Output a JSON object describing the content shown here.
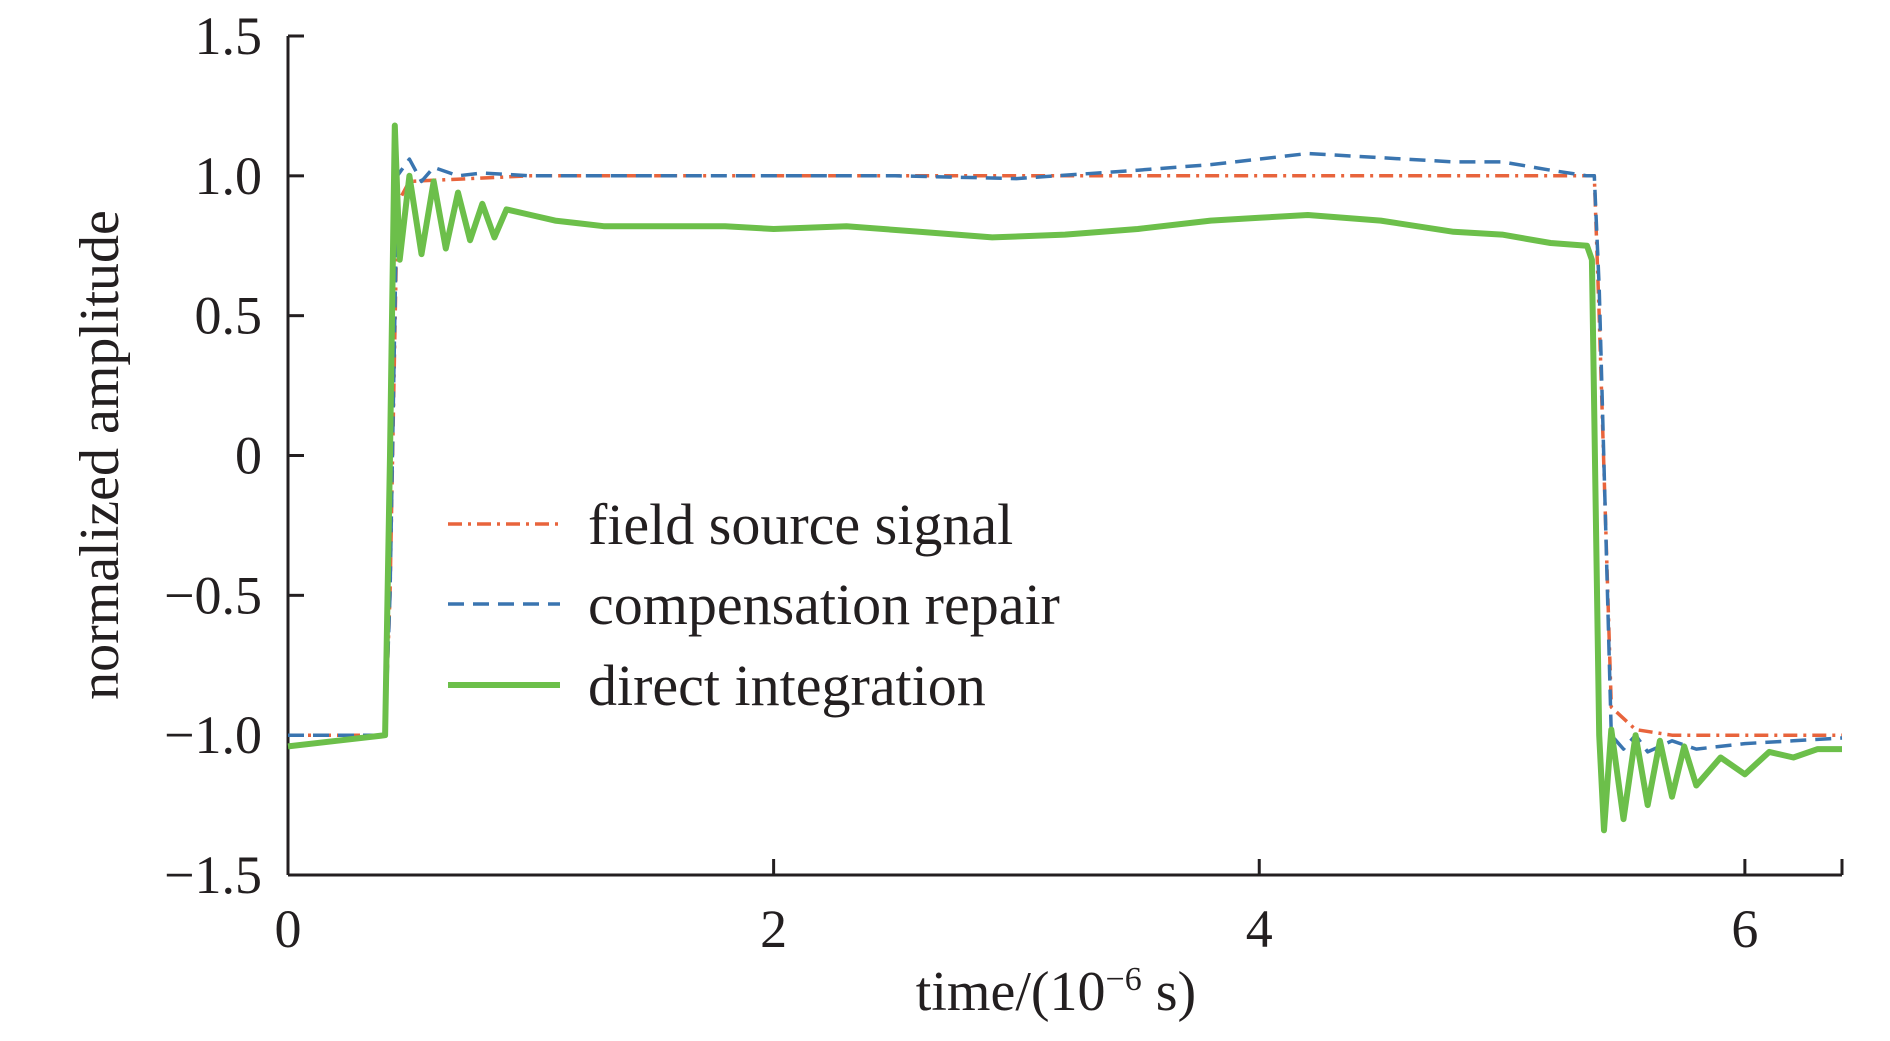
{
  "chart_data": {
    "type": "line",
    "title": "",
    "xlabel": "time/(10",
    "xlabel_sup": "−6",
    "xlabel_suffix": " s)",
    "ylabel": "normalized amplitude",
    "xlim": [
      0,
      6.4
    ],
    "ylim": [
      -1.5,
      1.5
    ],
    "x_ticks": [
      0,
      2,
      4,
      6
    ],
    "x_tick_labels": [
      "0",
      "2",
      "4",
      "6"
    ],
    "y_ticks": [
      1.5,
      1.0,
      0.5,
      0,
      -0.5,
      -1.0,
      -1.5
    ],
    "y_tick_labels": [
      "1.5",
      "1.0",
      "0.5",
      "0",
      "−0.5",
      "−1.0",
      "−1.5"
    ],
    "grid": false,
    "legend_position": "center-left",
    "series": [
      {
        "name": "field source signal",
        "color": "#e8643c",
        "style": "dash-dot",
        "x": [
          0,
          0.2,
          0.4,
          0.42,
          0.45,
          0.5,
          1.0,
          2.0,
          3.0,
          4.0,
          5.0,
          5.35,
          5.38,
          5.4,
          5.45,
          5.55,
          5.7,
          6.0,
          6.4
        ],
        "y": [
          -1.0,
          -1.0,
          -1.0,
          -0.5,
          0.9,
          0.98,
          1.0,
          1.0,
          1.0,
          1.0,
          1.0,
          1.0,
          1.0,
          0.5,
          -0.9,
          -0.98,
          -1.0,
          -1.0,
          -1.0
        ]
      },
      {
        "name": "compensation repair",
        "color": "#3a75b0",
        "style": "dashed",
        "x": [
          0,
          0.2,
          0.4,
          0.42,
          0.45,
          0.5,
          0.55,
          0.6,
          0.7,
          0.8,
          1.0,
          1.5,
          2.0,
          2.5,
          3.0,
          3.5,
          3.8,
          4.0,
          4.2,
          4.4,
          4.6,
          4.8,
          5.0,
          5.2,
          5.35,
          5.38,
          5.4,
          5.45,
          5.5,
          5.55,
          5.6,
          5.7,
          5.8,
          6.0,
          6.2,
          6.4
        ],
        "y": [
          -1.0,
          -1.0,
          -1.0,
          -0.5,
          1.0,
          1.06,
          0.98,
          1.03,
          1.0,
          1.01,
          1.0,
          1.0,
          1.0,
          1.0,
          0.99,
          1.02,
          1.04,
          1.06,
          1.08,
          1.07,
          1.06,
          1.05,
          1.05,
          1.02,
          1.0,
          1.0,
          0.6,
          -1.0,
          -1.05,
          -1.0,
          -1.06,
          -1.02,
          -1.05,
          -1.03,
          -1.02,
          -1.01
        ]
      },
      {
        "name": "direct integration",
        "color": "#6cbf4a",
        "style": "solid",
        "x": [
          0,
          0.2,
          0.4,
          0.42,
          0.44,
          0.46,
          0.5,
          0.55,
          0.6,
          0.65,
          0.7,
          0.75,
          0.8,
          0.85,
          0.9,
          1.0,
          1.1,
          1.2,
          1.3,
          1.5,
          1.8,
          2.0,
          2.3,
          2.6,
          2.9,
          3.2,
          3.5,
          3.8,
          4.0,
          4.2,
          4.5,
          4.8,
          5.0,
          5.2,
          5.35,
          5.37,
          5.4,
          5.42,
          5.45,
          5.5,
          5.55,
          5.6,
          5.65,
          5.7,
          5.75,
          5.8,
          5.9,
          6.0,
          6.1,
          6.2,
          6.3,
          6.4
        ],
        "y": [
          -1.04,
          -1.02,
          -1.0,
          0.0,
          1.18,
          0.7,
          1.0,
          0.72,
          0.98,
          0.74,
          0.94,
          0.77,
          0.9,
          0.78,
          0.88,
          0.86,
          0.84,
          0.83,
          0.82,
          0.82,
          0.82,
          0.81,
          0.82,
          0.8,
          0.78,
          0.79,
          0.81,
          0.84,
          0.85,
          0.86,
          0.84,
          0.8,
          0.79,
          0.76,
          0.75,
          0.7,
          -1.0,
          -1.34,
          -0.98,
          -1.3,
          -1.0,
          -1.25,
          -1.02,
          -1.22,
          -1.04,
          -1.18,
          -1.08,
          -1.14,
          -1.06,
          -1.08,
          -1.05,
          -1.05
        ]
      }
    ]
  }
}
